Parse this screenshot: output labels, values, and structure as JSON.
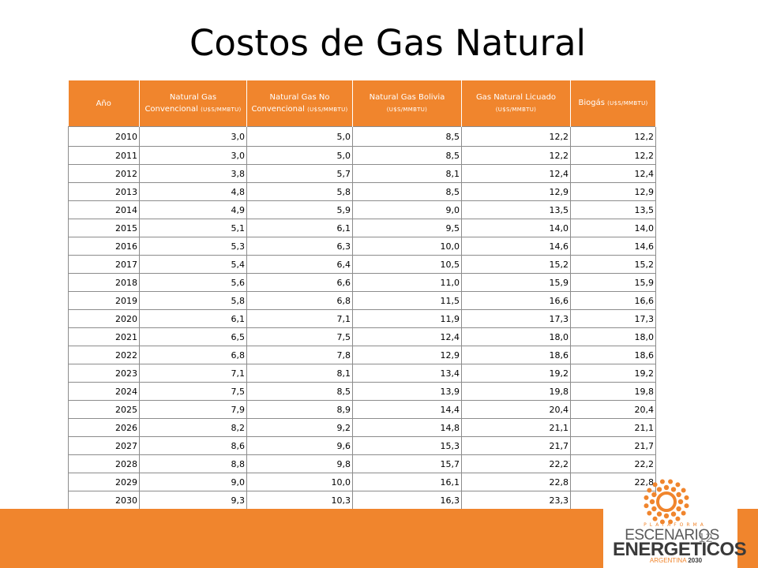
{
  "title": "Costos de Gas Natural",
  "table": {
    "headers": [
      {
        "main": "Año",
        "unit": ""
      },
      {
        "main": "Natural Gas",
        "main2": "Convencional",
        "unit": "(U$S/MMBTU)"
      },
      {
        "main": "Natural Gas No",
        "main2": "Convencional",
        "unit": "(U$S/MMBTU)"
      },
      {
        "main": "Natural Gas Bolivia",
        "unit": "(U$S/MMBTU)"
      },
      {
        "main": "Gas Natural Licuado",
        "unit": "(U$S/MMBTU)"
      },
      {
        "main": "Biogás",
        "unit": "(U$S/MMBTU)"
      }
    ],
    "rows": [
      [
        "2010",
        "3,0",
        "5,0",
        "8,5",
        "12,2",
        "12,2"
      ],
      [
        "2011",
        "3,0",
        "5,0",
        "8,5",
        "12,2",
        "12,2"
      ],
      [
        "2012",
        "3,8",
        "5,7",
        "8,1",
        "12,4",
        "12,4"
      ],
      [
        "2013",
        "4,8",
        "5,8",
        "8,5",
        "12,9",
        "12,9"
      ],
      [
        "2014",
        "4,9",
        "5,9",
        "9,0",
        "13,5",
        "13,5"
      ],
      [
        "2015",
        "5,1",
        "6,1",
        "9,5",
        "14,0",
        "14,0"
      ],
      [
        "2016",
        "5,3",
        "6,3",
        "10,0",
        "14,6",
        "14,6"
      ],
      [
        "2017",
        "5,4",
        "6,4",
        "10,5",
        "15,2",
        "15,2"
      ],
      [
        "2018",
        "5,6",
        "6,6",
        "11,0",
        "15,9",
        "15,9"
      ],
      [
        "2019",
        "5,8",
        "6,8",
        "11,5",
        "16,6",
        "16,6"
      ],
      [
        "2020",
        "6,1",
        "7,1",
        "11,9",
        "17,3",
        "17,3"
      ],
      [
        "2021",
        "6,5",
        "7,5",
        "12,4",
        "18,0",
        "18,0"
      ],
      [
        "2022",
        "6,8",
        "7,8",
        "12,9",
        "18,6",
        "18,6"
      ],
      [
        "2023",
        "7,1",
        "8,1",
        "13,4",
        "19,2",
        "19,2"
      ],
      [
        "2024",
        "7,5",
        "8,5",
        "13,9",
        "19,8",
        "19,8"
      ],
      [
        "2025",
        "7,9",
        "8,9",
        "14,4",
        "20,4",
        "20,4"
      ],
      [
        "2026",
        "8,2",
        "9,2",
        "14,8",
        "21,1",
        "21,1"
      ],
      [
        "2027",
        "8,6",
        "9,6",
        "15,3",
        "21,7",
        "21,7"
      ],
      [
        "2028",
        "8,8",
        "9,8",
        "15,7",
        "22,2",
        "22,2"
      ],
      [
        "2029",
        "9,0",
        "10,0",
        "16,1",
        "22,8",
        "22,8"
      ],
      [
        "2030",
        "9,3",
        "10,3",
        "16,3",
        "23,3",
        "23,3"
      ]
    ]
  },
  "logo": {
    "plataforma": "PLATAFORMA",
    "escenarios": "ESCENARIOS",
    "energeticos": "ENERGETICOS",
    "argentina": "ARGENTINA",
    "year": "2030"
  },
  "slide_number": "12",
  "colors": {
    "accent": "#f0852d",
    "border": "#8c8c8c"
  }
}
